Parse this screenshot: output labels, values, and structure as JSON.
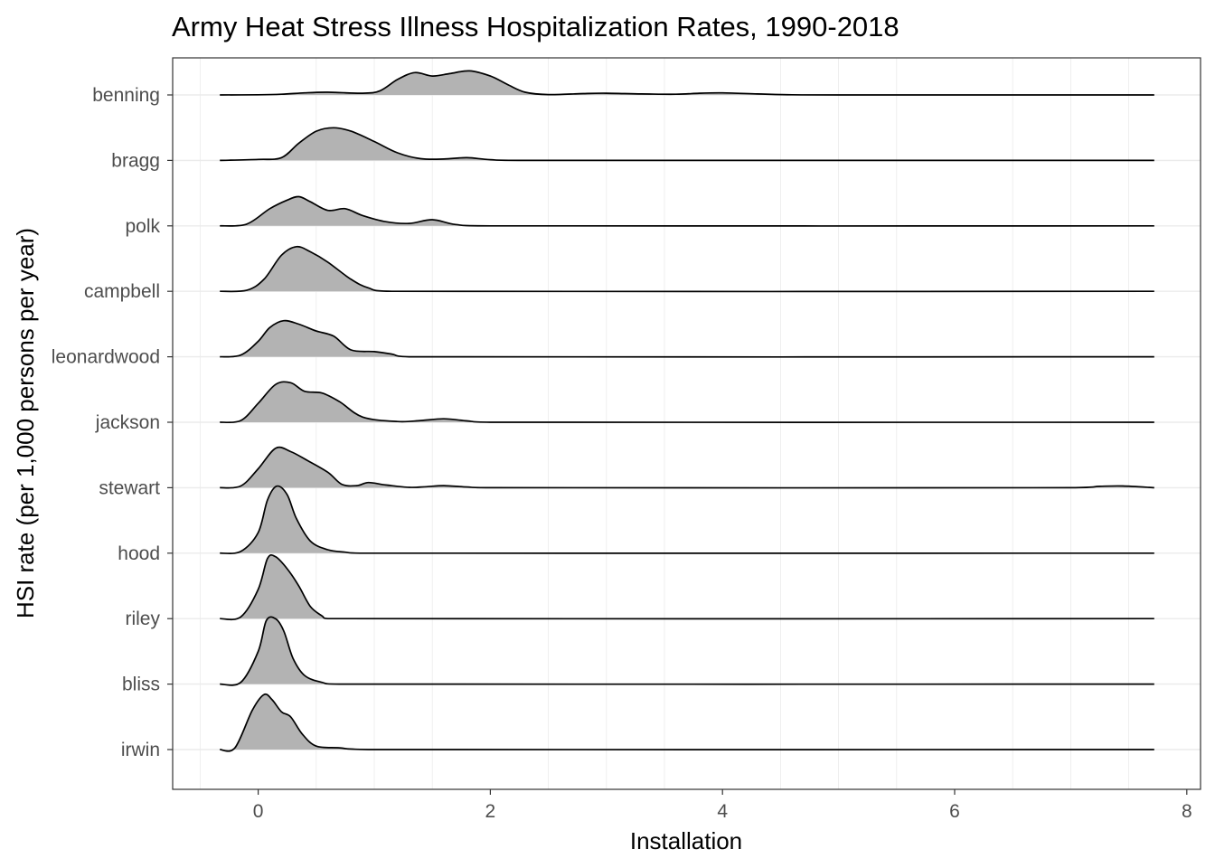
{
  "chart_data": {
    "type": "ridgeline",
    "title": "Army Heat Stress Illness Hospitalization Rates, 1990-2018",
    "xlabel": "Installation",
    "ylabel": "HSI rate (per 1,000 persons per year)",
    "xlim": [
      -0.75,
      8.1
    ],
    "xticks": [
      0,
      2,
      4,
      6,
      8
    ],
    "grid": true,
    "fill_color": "#b3b3b3",
    "line_color": "#000000",
    "grid_color": "#ebebeb",
    "categories": [
      "benning",
      "bragg",
      "polk",
      "campbell",
      "leonardwood",
      "jackson",
      "stewart",
      "hood",
      "riley",
      "bliss",
      "irwin"
    ],
    "series": [
      {
        "name": "benning",
        "x": [
          -0.33,
          0.0,
          0.2,
          0.4,
          0.6,
          0.9,
          1.05,
          1.2,
          1.35,
          1.5,
          1.65,
          1.82,
          2.0,
          2.15,
          2.3,
          2.5,
          2.8,
          3.0,
          3.3,
          3.6,
          3.8,
          4.0,
          4.3,
          4.6,
          5.0,
          6.0,
          7.0,
          7.72
        ],
        "y": [
          0,
          0.005,
          0.02,
          0.06,
          0.08,
          0.05,
          0.12,
          0.45,
          0.65,
          0.55,
          0.62,
          0.7,
          0.55,
          0.3,
          0.08,
          0.01,
          0.04,
          0.05,
          0.03,
          0.02,
          0.05,
          0.06,
          0.03,
          0.005,
          0,
          0,
          0,
          0
        ]
      },
      {
        "name": "bragg",
        "x": [
          -0.33,
          0.0,
          0.2,
          0.35,
          0.5,
          0.65,
          0.8,
          1.0,
          1.2,
          1.4,
          1.6,
          1.8,
          2.0,
          2.3,
          4.0,
          7.72
        ],
        "y": [
          0,
          0.03,
          0.08,
          0.5,
          0.85,
          0.95,
          0.85,
          0.55,
          0.22,
          0.05,
          0.04,
          0.08,
          0.02,
          0,
          0,
          0
        ]
      },
      {
        "name": "polk",
        "x": [
          -0.33,
          -0.1,
          0.1,
          0.25,
          0.35,
          0.45,
          0.6,
          0.75,
          0.9,
          1.1,
          1.3,
          1.5,
          1.7,
          2.0,
          7.72
        ],
        "y": [
          0,
          0.05,
          0.5,
          0.75,
          0.85,
          0.7,
          0.45,
          0.5,
          0.3,
          0.12,
          0.07,
          0.18,
          0.04,
          0,
          0
        ]
      },
      {
        "name": "campbell",
        "x": [
          -0.33,
          -0.1,
          0.05,
          0.2,
          0.33,
          0.45,
          0.6,
          0.8,
          0.95,
          1.15,
          7.72
        ],
        "y": [
          0,
          0.03,
          0.35,
          1.05,
          1.3,
          1.15,
          0.85,
          0.35,
          0.1,
          0,
          0
        ]
      },
      {
        "name": "leonardwood",
        "x": [
          -0.33,
          -0.15,
          0.0,
          0.1,
          0.22,
          0.35,
          0.5,
          0.65,
          0.8,
          1.0,
          1.15,
          1.3,
          7.72
        ],
        "y": [
          0,
          0.05,
          0.45,
          0.85,
          1.05,
          0.95,
          0.75,
          0.6,
          0.2,
          0.15,
          0.08,
          0,
          0
        ]
      },
      {
        "name": "jackson",
        "x": [
          -0.33,
          -0.15,
          0.0,
          0.15,
          0.28,
          0.4,
          0.55,
          0.7,
          0.9,
          1.2,
          1.4,
          1.6,
          1.8,
          2.0,
          7.72
        ],
        "y": [
          0,
          0.05,
          0.55,
          1.1,
          1.15,
          0.9,
          0.85,
          0.6,
          0.15,
          0.02,
          0.05,
          0.1,
          0.04,
          0,
          0
        ]
      },
      {
        "name": "stewart",
        "x": [
          -0.33,
          -0.15,
          0.0,
          0.15,
          0.28,
          0.42,
          0.6,
          0.72,
          0.85,
          0.95,
          1.1,
          1.3,
          1.45,
          1.6,
          1.8,
          2.0,
          7.0,
          7.25,
          7.45,
          7.72
        ],
        "y": [
          0,
          0.05,
          0.55,
          1.15,
          1.05,
          0.8,
          0.45,
          0.1,
          0.06,
          0.15,
          0.08,
          0.01,
          0.03,
          0.06,
          0.02,
          0,
          0,
          0.04,
          0.05,
          0
        ]
      },
      {
        "name": "hood",
        "x": [
          -0.33,
          -0.15,
          0.0,
          0.08,
          0.16,
          0.25,
          0.33,
          0.45,
          0.6,
          0.75,
          0.9,
          7.72
        ],
        "y": [
          0,
          0.05,
          0.6,
          1.55,
          1.95,
          1.7,
          1.0,
          0.35,
          0.1,
          0.03,
          0,
          0
        ]
      },
      {
        "name": "riley",
        "x": [
          -0.33,
          -0.15,
          0.0,
          0.08,
          0.15,
          0.25,
          0.35,
          0.45,
          0.55,
          0.6,
          7.72
        ],
        "y": [
          0,
          0.05,
          0.85,
          1.75,
          1.8,
          1.45,
          0.95,
          0.35,
          0.08,
          0,
          0
        ]
      },
      {
        "name": "bliss",
        "x": [
          -0.33,
          -0.15,
          0.0,
          0.07,
          0.15,
          0.22,
          0.3,
          0.4,
          0.55,
          0.7,
          7.72
        ],
        "y": [
          0,
          0.05,
          0.95,
          1.85,
          1.9,
          1.55,
          0.75,
          0.25,
          0.05,
          0,
          0
        ]
      },
      {
        "name": "irwin",
        "x": [
          -0.33,
          -0.2,
          -0.05,
          0.05,
          0.12,
          0.2,
          0.28,
          0.38,
          0.5,
          0.7,
          0.95,
          7.72
        ],
        "y": [
          0,
          0.05,
          1.15,
          1.6,
          1.45,
          1.1,
          0.95,
          0.45,
          0.1,
          0.05,
          0,
          0
        ]
      }
    ]
  }
}
